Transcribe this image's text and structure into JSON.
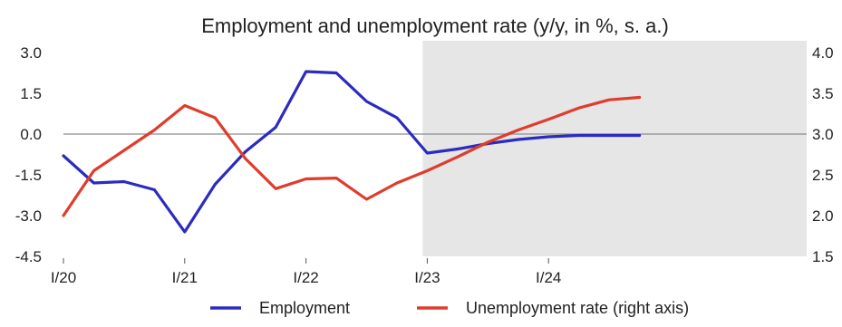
{
  "chart_data": {
    "type": "line",
    "title": "Employment and unemployment rate (y/y, in %, s. a.)",
    "x": [
      "I/20",
      "II/20",
      "III/20",
      "IV/20",
      "I/21",
      "II/21",
      "III/21",
      "IV/21",
      "I/22",
      "II/22",
      "III/22",
      "IV/22",
      "I/23",
      "II/23",
      "III/23",
      "IV/23",
      "I/24",
      "II/24",
      "III/24",
      "IV/24"
    ],
    "xtick_labels": [
      "I/20",
      "I/21",
      "I/22",
      "I/23",
      "I/24"
    ],
    "y_left_ticks": [
      "3.0",
      "1.5",
      "0.0",
      "-1.5",
      "-3.0",
      "-4.5"
    ],
    "y_right_ticks": [
      "4.0",
      "3.5",
      "3.0",
      "2.5",
      "2.0",
      "1.5"
    ],
    "ylim_left": [
      -4.5,
      3.0
    ],
    "ylim_right": [
      1.5,
      4.0
    ],
    "shaded_forecast_region": [
      "IV/22",
      "IV/24"
    ],
    "reference_line_left": 0.0,
    "series": [
      {
        "name": "Employment",
        "axis": "left",
        "color": "#2b2bbf",
        "values": [
          -0.8,
          -1.8,
          -1.75,
          -2.05,
          -3.6,
          -1.85,
          -0.65,
          0.25,
          2.3,
          2.25,
          1.2,
          0.6,
          -0.7,
          -0.55,
          -0.35,
          -0.2,
          -0.1,
          -0.05,
          -0.05,
          -0.05
        ]
      },
      {
        "name": "Unemployment rate (right axis)",
        "axis": "right",
        "color": "#e03c2c",
        "values": [
          2.0,
          2.55,
          2.8,
          3.05,
          3.35,
          3.2,
          2.7,
          2.33,
          2.45,
          2.46,
          2.2,
          2.4,
          2.55,
          2.72,
          2.9,
          3.05,
          3.18,
          3.32,
          3.42,
          3.45
        ]
      }
    ]
  }
}
